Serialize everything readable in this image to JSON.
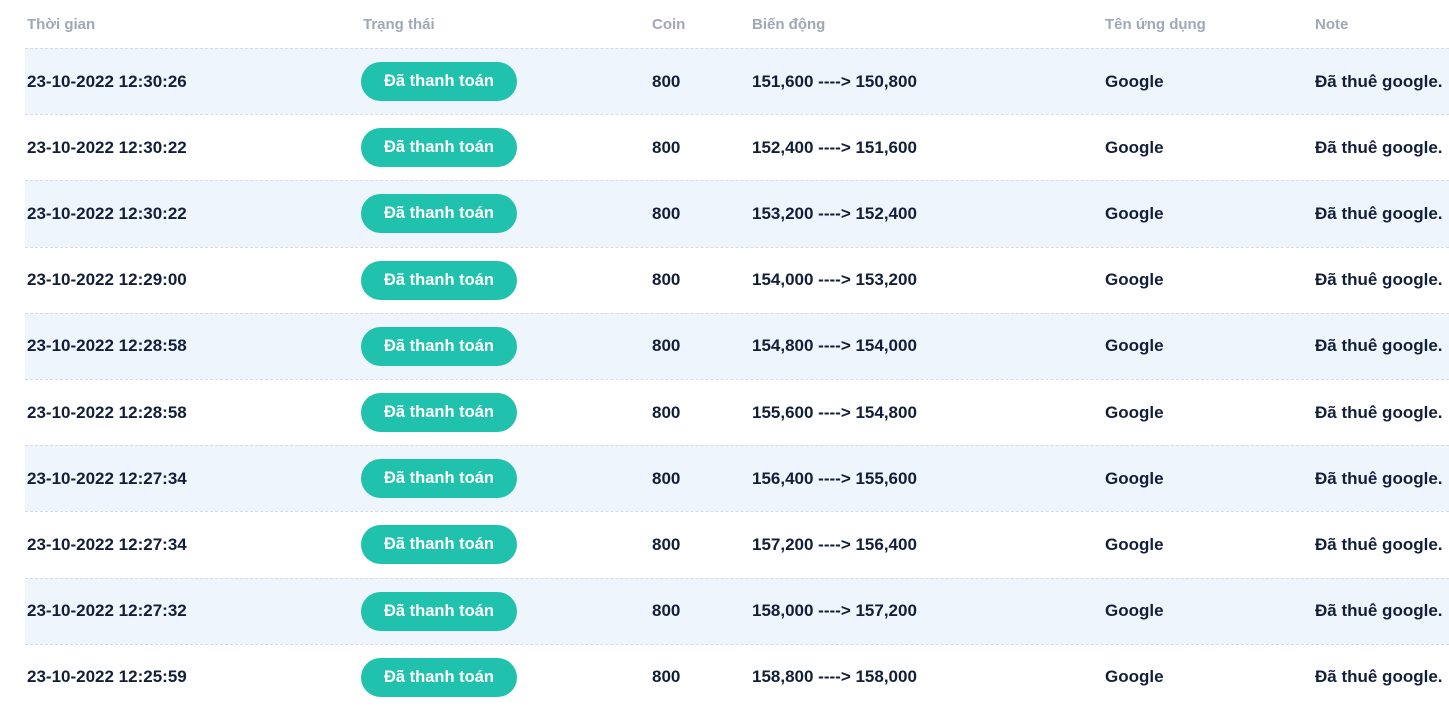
{
  "table": {
    "columns": [
      {
        "label": "Thời gian"
      },
      {
        "label": "Trạng thái"
      },
      {
        "label": "Coin"
      },
      {
        "label": "Biến động"
      },
      {
        "label": "Tên ứng dụng"
      },
      {
        "label": "Note"
      }
    ],
    "rows": [
      {
        "time": "23-10-2022 12:30:26",
        "status": "Đã thanh toán",
        "coin": "800",
        "change": "151,600 ----> 150,800",
        "app": "Google",
        "note": "Đã thuê google."
      },
      {
        "time": "23-10-2022 12:30:22",
        "status": "Đã thanh toán",
        "coin": "800",
        "change": "152,400 ----> 151,600",
        "app": "Google",
        "note": "Đã thuê google."
      },
      {
        "time": "23-10-2022 12:30:22",
        "status": "Đã thanh toán",
        "coin": "800",
        "change": "153,200 ----> 152,400",
        "app": "Google",
        "note": "Đã thuê google."
      },
      {
        "time": "23-10-2022 12:29:00",
        "status": "Đã thanh toán",
        "coin": "800",
        "change": "154,000 ----> 153,200",
        "app": "Google",
        "note": "Đã thuê google."
      },
      {
        "time": "23-10-2022 12:28:58",
        "status": "Đã thanh toán",
        "coin": "800",
        "change": "154,800 ----> 154,000",
        "app": "Google",
        "note": "Đã thuê google."
      },
      {
        "time": "23-10-2022 12:28:58",
        "status": "Đã thanh toán",
        "coin": "800",
        "change": "155,600 ----> 154,800",
        "app": "Google",
        "note": "Đã thuê google."
      },
      {
        "time": "23-10-2022 12:27:34",
        "status": "Đã thanh toán",
        "coin": "800",
        "change": "156,400 ----> 155,600",
        "app": "Google",
        "note": "Đã thuê google."
      },
      {
        "time": "23-10-2022 12:27:34",
        "status": "Đã thanh toán",
        "coin": "800",
        "change": "157,200 ----> 156,400",
        "app": "Google",
        "note": "Đã thuê google."
      },
      {
        "time": "23-10-2022 12:27:32",
        "status": "Đã thanh toán",
        "coin": "800",
        "change": "158,000 ----> 157,200",
        "app": "Google",
        "note": "Đã thuê google."
      },
      {
        "time": "23-10-2022 12:25:59",
        "status": "Đã thanh toán",
        "coin": "800",
        "change": "158,800 ----> 158,000",
        "app": "Google",
        "note": "Đã thuê google."
      }
    ]
  },
  "colors": {
    "status_badge": "#20c2ad",
    "row_stripe": "#eef5fc",
    "data_text": "#131e38",
    "header_text": "#a0a7b7",
    "row_divider": "#d6dbe3"
  }
}
